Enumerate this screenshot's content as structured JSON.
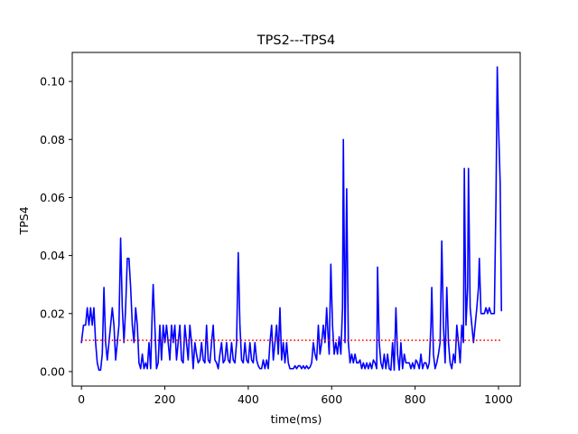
{
  "chart_data": {
    "type": "line",
    "title": "TPS2---TPS4",
    "xlabel": "time(ms)",
    "ylabel": "TPS4",
    "xlim": [
      -22,
      1052
    ],
    "ylim": [
      -0.005,
      0.11
    ],
    "x_ticks": [
      0,
      200,
      400,
      600,
      800,
      1000
    ],
    "x_tick_labels": [
      "0",
      "200",
      "400",
      "600",
      "800",
      "1000"
    ],
    "y_ticks": [
      0.0,
      0.02,
      0.04,
      0.06,
      0.08,
      0.1
    ],
    "y_tick_labels": [
      "0.00",
      "0.02",
      "0.04",
      "0.06",
      "0.08",
      "0.10"
    ],
    "grid": false,
    "series": [
      {
        "color": "#0000ff",
        "style": "solid",
        "points": [
          [
            0,
            0.01
          ],
          [
            5,
            0.016
          ],
          [
            10,
            0.016
          ],
          [
            14,
            0.022
          ],
          [
            18,
            0.016
          ],
          [
            22,
            0.022
          ],
          [
            26,
            0.016
          ],
          [
            30,
            0.022
          ],
          [
            34,
            0.01
          ],
          [
            38,
            0.003
          ],
          [
            42,
            0.0005
          ],
          [
            46,
            0.0005
          ],
          [
            50,
            0.006
          ],
          [
            54,
            0.029
          ],
          [
            58,
            0.01
          ],
          [
            62,
            0.004
          ],
          [
            66,
            0.01
          ],
          [
            70,
            0.016
          ],
          [
            74,
            0.022
          ],
          [
            78,
            0.016
          ],
          [
            82,
            0.004
          ],
          [
            86,
            0.01
          ],
          [
            90,
            0.016
          ],
          [
            94,
            0.046
          ],
          [
            98,
            0.022
          ],
          [
            102,
            0.01
          ],
          [
            106,
            0.022
          ],
          [
            110,
            0.039
          ],
          [
            114,
            0.039
          ],
          [
            118,
            0.029
          ],
          [
            122,
            0.016
          ],
          [
            126,
            0.01
          ],
          [
            130,
            0.022
          ],
          [
            134,
            0.016
          ],
          [
            138,
            0.003
          ],
          [
            142,
            0.001
          ],
          [
            146,
            0.006
          ],
          [
            150,
            0.001
          ],
          [
            154,
            0.003
          ],
          [
            158,
            0.001
          ],
          [
            162,
            0.01
          ],
          [
            166,
            0.001
          ],
          [
            170,
            0.022
          ],
          [
            172,
            0.03
          ],
          [
            176,
            0.016
          ],
          [
            180,
            0.001
          ],
          [
            184,
            0.003
          ],
          [
            188,
            0.016
          ],
          [
            192,
            0.004
          ],
          [
            196,
            0.016
          ],
          [
            200,
            0.01
          ],
          [
            204,
            0.016
          ],
          [
            208,
            0.01
          ],
          [
            212,
            0.004
          ],
          [
            216,
            0.016
          ],
          [
            220,
            0.01
          ],
          [
            224,
            0.016
          ],
          [
            228,
            0.004
          ],
          [
            232,
            0.01
          ],
          [
            236,
            0.016
          ],
          [
            240,
            0.004
          ],
          [
            244,
            0.003
          ],
          [
            248,
            0.016
          ],
          [
            252,
            0.01
          ],
          [
            256,
            0.004
          ],
          [
            260,
            0.016
          ],
          [
            264,
            0.01
          ],
          [
            268,
            0.001
          ],
          [
            272,
            0.01
          ],
          [
            276,
            0.006
          ],
          [
            280,
            0.003
          ],
          [
            284,
            0.004
          ],
          [
            288,
            0.01
          ],
          [
            292,
            0.004
          ],
          [
            296,
            0.003
          ],
          [
            300,
            0.016
          ],
          [
            304,
            0.004
          ],
          [
            308,
            0.003
          ],
          [
            312,
            0.01
          ],
          [
            316,
            0.016
          ],
          [
            320,
            0.004
          ],
          [
            324,
            0.003
          ],
          [
            328,
            0.001
          ],
          [
            332,
            0.006
          ],
          [
            336,
            0.01
          ],
          [
            340,
            0.003
          ],
          [
            344,
            0.004
          ],
          [
            348,
            0.01
          ],
          [
            352,
            0.004
          ],
          [
            356,
            0.003
          ],
          [
            360,
            0.01
          ],
          [
            364,
            0.004
          ],
          [
            368,
            0.003
          ],
          [
            372,
            0.01
          ],
          [
            376,
            0.041
          ],
          [
            380,
            0.016
          ],
          [
            384,
            0.004
          ],
          [
            388,
            0.003
          ],
          [
            392,
            0.01
          ],
          [
            396,
            0.004
          ],
          [
            400,
            0.003
          ],
          [
            404,
            0.01
          ],
          [
            408,
            0.004
          ],
          [
            412,
            0.003
          ],
          [
            416,
            0.01
          ],
          [
            420,
            0.004
          ],
          [
            424,
            0.002
          ],
          [
            428,
            0.001
          ],
          [
            432,
            0.001
          ],
          [
            436,
            0.004
          ],
          [
            440,
            0.001
          ],
          [
            444,
            0.004
          ],
          [
            448,
            0.001
          ],
          [
            452,
            0.01
          ],
          [
            456,
            0.016
          ],
          [
            460,
            0.004
          ],
          [
            464,
            0.01
          ],
          [
            468,
            0.016
          ],
          [
            472,
            0.006
          ],
          [
            476,
            0.022
          ],
          [
            480,
            0.004
          ],
          [
            484,
            0.01
          ],
          [
            488,
            0.003
          ],
          [
            492,
            0.01
          ],
          [
            496,
            0.003
          ],
          [
            500,
            0.001
          ],
          [
            504,
            0.001
          ],
          [
            508,
            0.001
          ],
          [
            512,
            0.002
          ],
          [
            516,
            0.001
          ],
          [
            520,
            0.002
          ],
          [
            524,
            0.002
          ],
          [
            528,
            0.001
          ],
          [
            532,
            0.002
          ],
          [
            536,
            0.001
          ],
          [
            540,
            0.002
          ],
          [
            544,
            0.001
          ],
          [
            548,
            0.0015
          ],
          [
            552,
            0.003
          ],
          [
            556,
            0.01
          ],
          [
            560,
            0.006
          ],
          [
            564,
            0.004
          ],
          [
            568,
            0.016
          ],
          [
            572,
            0.006
          ],
          [
            576,
            0.01
          ],
          [
            580,
            0.016
          ],
          [
            584,
            0.01
          ],
          [
            588,
            0.022
          ],
          [
            590,
            0.016
          ],
          [
            594,
            0.006
          ],
          [
            598,
            0.037
          ],
          [
            602,
            0.016
          ],
          [
            606,
            0.006
          ],
          [
            610,
            0.01
          ],
          [
            614,
            0.006
          ],
          [
            618,
            0.012
          ],
          [
            622,
            0.006
          ],
          [
            626,
            0.022
          ],
          [
            628,
            0.08
          ],
          [
            632,
            0.01
          ],
          [
            636,
            0.063
          ],
          [
            640,
            0.01
          ],
          [
            644,
            0.003
          ],
          [
            648,
            0.006
          ],
          [
            652,
            0.003
          ],
          [
            656,
            0.006
          ],
          [
            660,
            0.003
          ],
          [
            664,
            0.003
          ],
          [
            668,
            0.004
          ],
          [
            672,
            0.001
          ],
          [
            676,
            0.003
          ],
          [
            680,
            0.001
          ],
          [
            684,
            0.003
          ],
          [
            688,
            0.001
          ],
          [
            692,
            0.003
          ],
          [
            696,
            0.001
          ],
          [
            700,
            0.004
          ],
          [
            704,
            0.003
          ],
          [
            708,
            0.001
          ],
          [
            710,
            0.036
          ],
          [
            714,
            0.01
          ],
          [
            718,
            0.003
          ],
          [
            722,
            0.001
          ],
          [
            726,
            0.006
          ],
          [
            730,
            0.001
          ],
          [
            734,
            0.006
          ],
          [
            738,
            0.001
          ],
          [
            742,
            0.0005
          ],
          [
            746,
            0.01
          ],
          [
            750,
            0.0005
          ],
          [
            754,
            0.022
          ],
          [
            758,
            0.006
          ],
          [
            762,
            0.0005
          ],
          [
            766,
            0.01
          ],
          [
            770,
            0.001
          ],
          [
            774,
            0.006
          ],
          [
            778,
            0.003
          ],
          [
            782,
            0.003
          ],
          [
            786,
            0.003
          ],
          [
            790,
            0.001
          ],
          [
            794,
            0.003
          ],
          [
            798,
            0.001
          ],
          [
            802,
            0.004
          ],
          [
            806,
            0.003
          ],
          [
            810,
            0.001
          ],
          [
            814,
            0.006
          ],
          [
            818,
            0.001
          ],
          [
            822,
            0.003
          ],
          [
            826,
            0.003
          ],
          [
            830,
            0.001
          ],
          [
            834,
            0.003
          ],
          [
            838,
            0.016
          ],
          [
            840,
            0.029
          ],
          [
            844,
            0.006
          ],
          [
            848,
            0.001
          ],
          [
            852,
            0.003
          ],
          [
            856,
            0.006
          ],
          [
            860,
            0.01
          ],
          [
            864,
            0.045
          ],
          [
            868,
            0.016
          ],
          [
            872,
            0.003
          ],
          [
            876,
            0.029
          ],
          [
            880,
            0.01
          ],
          [
            884,
            0.003
          ],
          [
            888,
            0.001
          ],
          [
            892,
            0.006
          ],
          [
            896,
            0.003
          ],
          [
            900,
            0.016
          ],
          [
            904,
            0.01
          ],
          [
            908,
            0.003
          ],
          [
            912,
            0.016
          ],
          [
            916,
            0.01
          ],
          [
            918,
            0.07
          ],
          [
            922,
            0.016
          ],
          [
            926,
            0.029
          ],
          [
            928,
            0.07
          ],
          [
            932,
            0.022
          ],
          [
            936,
            0.016
          ],
          [
            940,
            0.01
          ],
          [
            944,
            0.016
          ],
          [
            948,
            0.022
          ],
          [
            952,
            0.029
          ],
          [
            954,
            0.039
          ],
          [
            958,
            0.02
          ],
          [
            962,
            0.02
          ],
          [
            966,
            0.02
          ],
          [
            970,
            0.022
          ],
          [
            974,
            0.02
          ],
          [
            978,
            0.022
          ],
          [
            982,
            0.02
          ],
          [
            986,
            0.02
          ],
          [
            990,
            0.02
          ],
          [
            994,
            0.06
          ],
          [
            997,
            0.105
          ],
          [
            1000,
            0.085
          ],
          [
            1004,
            0.065
          ],
          [
            1007,
            0.021
          ]
        ]
      },
      {
        "color": "#ff0000",
        "style": "dotted",
        "points": [
          [
            0,
            0.0108
          ],
          [
            1007,
            0.0108
          ]
        ]
      }
    ]
  }
}
